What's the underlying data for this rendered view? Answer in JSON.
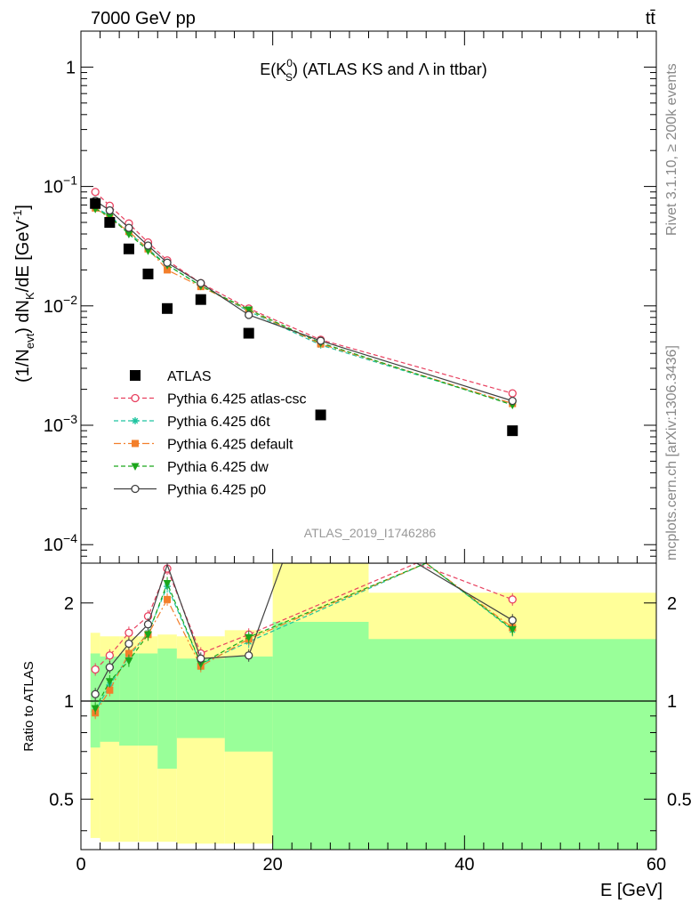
{
  "header": {
    "left": "7000 GeV pp",
    "right": "tt̄"
  },
  "side_labels": {
    "rivet": "Rivet 3.1.10, ≥ 200k events",
    "mcplots": "mcplots.cern.ch [arXiv:1306.3436]"
  },
  "analysis_id": "ATLAS_2019_I1746286",
  "colors": {
    "data": "#000000",
    "atlas_csc": "#e8405f",
    "d6t": "#1fc4a0",
    "default": "#f37f2b",
    "dw": "#1aa61a",
    "p0": "#404040",
    "band_outer": "#ffff99",
    "band_inner": "#99ff99"
  },
  "chart_data": [
    {
      "type": "scatter",
      "panel": "main",
      "title": "E(K0S) (ATLAS KS and Λ in ttbar)",
      "title_parts": {
        "prefix": "E(K",
        "sup": "0",
        "sub": "S",
        "suffix": ") (ATLAS KS and Λ in ttbar)"
      },
      "ylabel": "(1/Nevt) dNK/dE [GeV⁻¹]",
      "ylabel_parts": {
        "a": "(1/N",
        "sub1": "evt",
        "b": ") dN",
        "sub2": "K",
        "c": "/dE [GeV",
        "sup": "-1",
        "d": "]"
      },
      "y_scale": "log",
      "ylim": [
        7e-05,
        2
      ],
      "xlim": [
        0,
        60
      ],
      "y_ticks": [
        {
          "value": 1,
          "label": "1",
          "sup": ""
        },
        {
          "value": 0.1,
          "label": "10",
          "sup": "−1"
        },
        {
          "value": 0.01,
          "label": "10",
          "sup": "−2"
        },
        {
          "value": 0.001,
          "label": "10",
          "sup": "−3"
        },
        {
          "value": 0.0001,
          "label": "10",
          "sup": "−4"
        }
      ],
      "legend_position": "center-left",
      "series": [
        {
          "name": "ATLAS",
          "key": "data",
          "marker": "square",
          "x": [
            1.5,
            3,
            5,
            7,
            9,
            12.5,
            17.5,
            25,
            45
          ],
          "y": [
            0.072,
            0.05,
            0.03,
            0.0185,
            0.0095,
            0.0113,
            0.0059,
            0.00122,
            0.0009
          ]
        },
        {
          "name": "Pythia 6.425 atlas-csc",
          "key": "atlas_csc",
          "marker": "open-circle",
          "dash": "5,3",
          "x": [
            1.5,
            3,
            5,
            7,
            9,
            12.5,
            17.5,
            25,
            45
          ],
          "y": [
            0.09,
            0.069,
            0.049,
            0.034,
            0.024,
            0.0155,
            0.0095,
            0.0052,
            0.00185
          ]
        },
        {
          "name": "Pythia 6.425 d6t",
          "key": "d6t",
          "marker": "star",
          "dash": "5,3",
          "x": [
            1.5,
            3,
            5,
            7,
            9,
            12.5,
            17.5,
            25,
            45
          ],
          "y": [
            0.067,
            0.057,
            0.041,
            0.03,
            0.022,
            0.0148,
            0.009,
            0.0047,
            0.0015
          ]
        },
        {
          "name": "Pythia 6.425 default",
          "key": "default",
          "marker": "filled-square",
          "dash": "8,3,2,3",
          "x": [
            1.5,
            3,
            5,
            7,
            9,
            12.5,
            17.5,
            25,
            45
          ],
          "y": [
            0.066,
            0.054,
            0.042,
            0.03,
            0.02,
            0.0145,
            0.0092,
            0.0048,
            0.00152
          ]
        },
        {
          "name": "Pythia 6.425 dw",
          "key": "dw",
          "marker": "triangle-down",
          "dash": "5,3",
          "x": [
            1.5,
            3,
            5,
            7,
            9,
            12.5,
            17.5,
            25,
            45
          ],
          "y": [
            0.065,
            0.056,
            0.04,
            0.029,
            0.022,
            0.0147,
            0.0093,
            0.0049,
            0.00148
          ]
        },
        {
          "name": "Pythia 6.425 p0",
          "key": "p0",
          "marker": "open-circle",
          "dash": "",
          "x": [
            1.5,
            3,
            5,
            7,
            9,
            12.5,
            17.5,
            25,
            45
          ],
          "y": [
            0.076,
            0.063,
            0.045,
            0.032,
            0.023,
            0.0155,
            0.0084,
            0.0051,
            0.0016
          ]
        }
      ]
    },
    {
      "type": "line",
      "panel": "ratio",
      "ylabel": "Ratio to ATLAS",
      "xlabel": "E [GeV]",
      "y_scale": "log",
      "ylim": [
        0.35,
        2.65
      ],
      "xlim": [
        0,
        60
      ],
      "y_ticks": [
        {
          "value": 0.5,
          "label": "0.5"
        },
        {
          "value": 1,
          "label": "1"
        },
        {
          "value": 2,
          "label": "2"
        }
      ],
      "x_ticks": [
        {
          "value": 0,
          "label": "0"
        },
        {
          "value": 20,
          "label": "20"
        },
        {
          "value": 40,
          "label": "40"
        },
        {
          "value": 60,
          "label": "60"
        }
      ],
      "bands": {
        "bins": [
          [
            1,
            2
          ],
          [
            2,
            4
          ],
          [
            4,
            6
          ],
          [
            6,
            8
          ],
          [
            8,
            10
          ],
          [
            10,
            15
          ],
          [
            15,
            20
          ],
          [
            20,
            30
          ],
          [
            30,
            60
          ]
        ],
        "outer_low": [
          0.38,
          0.37,
          0.37,
          0.37,
          0.37,
          0.365,
          0.365,
          0.35,
          0.35
        ],
        "outer_high": [
          1.62,
          1.58,
          1.58,
          1.58,
          1.6,
          1.58,
          1.65,
          2.65,
          2.15
        ],
        "inner_low": [
          0.72,
          0.75,
          0.73,
          0.73,
          0.62,
          0.77,
          0.7,
          0.35,
          0.35
        ],
        "inner_high": [
          1.4,
          1.37,
          1.4,
          1.4,
          1.45,
          1.35,
          1.37,
          1.75,
          1.55
        ]
      },
      "series": [
        {
          "name": "Pythia 6.425 atlas-csc",
          "key": "atlas_csc",
          "marker": "open-circle",
          "dash": "5,3",
          "x": [
            1.5,
            3,
            5,
            7,
            9,
            12.5,
            17.5,
            35,
            45
          ],
          "y": [
            1.25,
            1.38,
            1.62,
            1.82,
            2.55,
            1.4,
            1.6,
            2.65,
            2.05
          ]
        },
        {
          "name": "Pythia 6.425 d6t",
          "key": "d6t",
          "marker": "star",
          "dash": "5,3",
          "x": [
            1.5,
            3,
            5,
            7,
            9,
            12.5,
            17.5,
            36,
            45
          ],
          "y": [
            0.93,
            1.12,
            1.37,
            1.62,
            2.25,
            1.3,
            1.52,
            2.65,
            1.65
          ]
        },
        {
          "name": "Pythia 6.425 default",
          "key": "default",
          "marker": "filled-square",
          "dash": "8,3,2,3",
          "x": [
            1.5,
            3,
            5,
            7,
            9,
            12.5,
            17.5,
            36,
            45
          ],
          "y": [
            0.92,
            1.08,
            1.4,
            1.6,
            2.05,
            1.28,
            1.55,
            2.65,
            1.68
          ]
        },
        {
          "name": "Pythia 6.425 dw",
          "key": "dw",
          "marker": "triangle-down",
          "dash": "5,3",
          "x": [
            1.5,
            3,
            5,
            7,
            9,
            12.5,
            17.5,
            36,
            45
          ],
          "y": [
            0.95,
            1.15,
            1.33,
            1.6,
            2.3,
            1.3,
            1.57,
            2.65,
            1.66
          ]
        },
        {
          "name": "Pythia 6.425 p0",
          "key": "p0",
          "marker": "open-circle",
          "dash": "",
          "x": [
            1.5,
            3,
            5,
            7,
            9,
            12.5,
            17.5,
            21,
            35,
            45
          ],
          "y": [
            1.05,
            1.27,
            1.5,
            1.72,
            2.62,
            1.35,
            1.38,
            2.65,
            2.65,
            1.77
          ]
        }
      ]
    }
  ]
}
